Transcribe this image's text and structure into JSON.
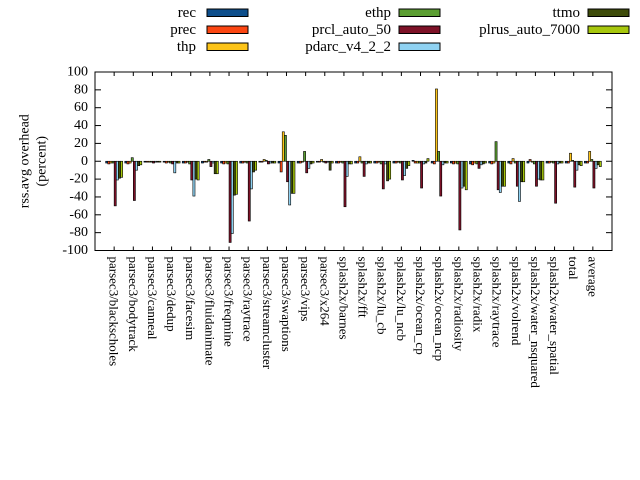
{
  "figure": {
    "background": "#ffffff",
    "frame_color": "#000000",
    "text_color": "#000000"
  },
  "legend": {
    "columns": [
      [
        "rec",
        "prec",
        "thp"
      ],
      [
        "ethp",
        "prcl_auto_50",
        "pdarc_v4_2_2"
      ],
      [
        "ttmo",
        "plrus_auto_7000"
      ]
    ]
  },
  "chart_data": {
    "type": "bar",
    "title": "",
    "xlabel": "",
    "ylabel_lines": [
      "rss.avg overhead",
      "(percent)"
    ],
    "ylim": [
      -100,
      100
    ],
    "ytick_step": 20,
    "grid": false,
    "legend_position": "top",
    "categories": [
      "parsec3/blackscholes",
      "parsec3/bodytrack",
      "parsec3/canneal",
      "parsec3/dedup",
      "parsec3/facesim",
      "parsec3/fluidanimate",
      "parsec3/freqmine",
      "parsec3/raytrace",
      "parsec3/streamcluster",
      "parsec3/swaptions",
      "parsec3/vips",
      "parsec3/x264",
      "splash2x/barnes",
      "splash2x/fft",
      "splash2x/lu_cb",
      "splash2x/lu_ncb",
      "splash2x/ocean_cp",
      "splash2x/ocean_ncp",
      "splash2x/radiosity",
      "splash2x/radix",
      "splash2x/raytrace",
      "splash2x/volrend",
      "splash2x/water_nsquared",
      "splash2x/water_spatial",
      "total",
      "average"
    ],
    "series": [
      {
        "name": "rec",
        "color": "#0d4e8b",
        "values": [
          -2,
          -2,
          -1,
          -1,
          -2,
          -2,
          -2,
          -2,
          -1,
          -2,
          -2,
          -1,
          -2,
          -2,
          -2,
          -2,
          1,
          -2,
          -2,
          -3,
          -2,
          -2,
          -2,
          -2,
          -2,
          -2
        ]
      },
      {
        "name": "prec",
        "color": "#fb4612",
        "values": [
          -3,
          -3,
          -1,
          -2,
          -2,
          -1,
          -3,
          -2,
          -1,
          -12,
          -2,
          -1,
          -2,
          -2,
          -2,
          -2,
          -2,
          -3,
          -3,
          -4,
          -3,
          -3,
          2,
          -2,
          -2,
          -2
        ]
      },
      {
        "name": "thp",
        "color": "#fdc418",
        "values": [
          -2,
          -2,
          -1,
          -1,
          -1,
          -1,
          -2,
          -1,
          2,
          33,
          -1,
          2,
          -1,
          5,
          -1,
          -1,
          -2,
          81,
          -2,
          -2,
          -2,
          3,
          -1,
          -1,
          9,
          11
        ]
      },
      {
        "name": "ethp",
        "color": "#5b9e32",
        "values": [
          -2,
          4,
          -1,
          -2,
          -3,
          2,
          -3,
          -2,
          1,
          29,
          11,
          -1,
          -2,
          -2,
          -3,
          -2,
          -2,
          11,
          -3,
          -3,
          22,
          -2,
          -3,
          -2,
          1,
          2
        ]
      },
      {
        "name": "prcl_auto_50",
        "color": "#7d1127",
        "values": [
          -50,
          -44,
          -2,
          -3,
          -21,
          -6,
          -91,
          -67,
          -3,
          -23,
          -13,
          -2,
          -51,
          -17,
          -31,
          -21,
          -30,
          -39,
          -77,
          -8,
          -32,
          -28,
          -28,
          -47,
          -29,
          -30
        ]
      },
      {
        "name": "pdarc_v4_2_2",
        "color": "#8fd2f2",
        "values": [
          -21,
          -10,
          -1,
          -13,
          -39,
          -2,
          -81,
          -31,
          -2,
          -49,
          -8,
          -1,
          -17,
          -3,
          -3,
          -16,
          -3,
          -4,
          -30,
          -4,
          -35,
          -45,
          -20,
          -3,
          -10,
          -8
        ]
      },
      {
        "name": "ttmo",
        "color": "#3e4c0a",
        "values": [
          -19,
          -5,
          -1,
          -2,
          -20,
          -14,
          -38,
          -12,
          -2,
          -36,
          -3,
          -10,
          -3,
          -2,
          -22,
          -8,
          -2,
          -2,
          -28,
          -3,
          -28,
          -23,
          -21,
          -2,
          -4,
          -4
        ]
      },
      {
        "name": "plrus_auto_7000",
        "color": "#a7c70d",
        "values": [
          -18,
          -4,
          -1,
          -2,
          -21,
          -14,
          -37,
          -10,
          -2,
          -36,
          -2,
          -2,
          -3,
          -2,
          -20,
          -5,
          3,
          -2,
          -32,
          -2,
          -28,
          -23,
          -21,
          -2,
          -5,
          -6
        ]
      }
    ]
  }
}
